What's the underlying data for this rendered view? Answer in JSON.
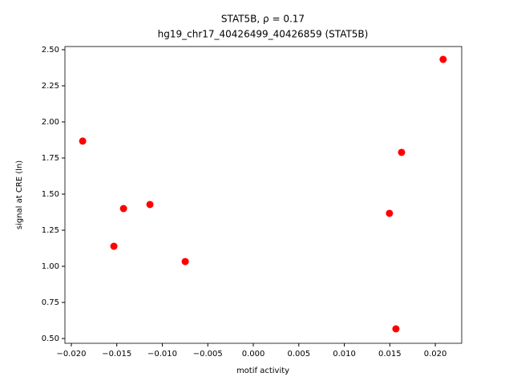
{
  "chart_data": {
    "type": "scatter",
    "title": "STAT5B, ρ = 0.17",
    "subtitle": "hg19_chr17_40426499_40426859 (STAT5B)",
    "x_label": "motif activity",
    "y_label": "signal at CRE (ln)",
    "series": [
      {
        "color": "#ff0000",
        "x": [
          -0.01875,
          -0.01532,
          -0.01426,
          -0.01136,
          -0.00748,
          0.01496,
          0.01567,
          0.01629,
          0.02086
        ],
        "values": [
          1.867,
          1.139,
          1.4,
          1.428,
          1.033,
          1.367,
          0.567,
          1.789,
          2.433
        ]
      }
    ],
    "xlim": [
      -0.0207,
      0.0229
    ],
    "ylim": [
      0.467,
      2.522
    ],
    "xticks": [
      {
        "value": -0.02,
        "label": "−0.020"
      },
      {
        "value": -0.015,
        "label": "−0.015"
      },
      {
        "value": -0.01,
        "label": "−0.010"
      },
      {
        "value": -0.005,
        "label": "−0.005"
      },
      {
        "value": 0,
        "label": "0.000"
      },
      {
        "value": 0.005,
        "label": "0.005"
      },
      {
        "value": 0.01,
        "label": "0.010"
      },
      {
        "value": 0.015,
        "label": "0.015"
      },
      {
        "value": 0.02,
        "label": "0.020"
      }
    ],
    "yticks": [
      {
        "value": 0.5,
        "label": "0.50"
      },
      {
        "value": 0.75,
        "label": "0.75"
      },
      {
        "value": 1,
        "label": "1.00"
      },
      {
        "value": 1.25,
        "label": "1.25"
      },
      {
        "value": 1.5,
        "label": "1.50"
      },
      {
        "value": 1.75,
        "label": "1.75"
      },
      {
        "value": 2,
        "label": "2.00"
      },
      {
        "value": 2.25,
        "label": "2.25"
      },
      {
        "value": 2.5,
        "label": "2.50"
      }
    ]
  }
}
